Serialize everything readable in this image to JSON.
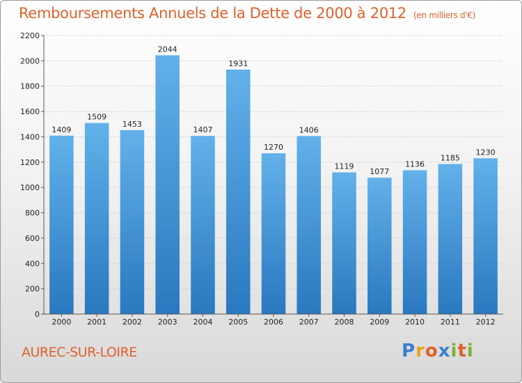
{
  "title": "Remboursements Annuels de la Dette de 2000 à 2012",
  "subtitle": "(en milliers d'€)",
  "place": "AUREC-SUR-LOIRE",
  "logo": {
    "letters": [
      "P",
      "r",
      "o",
      "x",
      "i",
      "t",
      "i"
    ],
    "colors": [
      "#3a7fd0",
      "#e8a21a",
      "#e0602a",
      "#3a7fd0",
      "#7ab534",
      "#e0602a",
      "#7ab534"
    ]
  },
  "colors": {
    "bar_top": "#62b1ea",
    "bar_bottom": "#2a78bf",
    "title": "#e0602a"
  },
  "chart_data": {
    "type": "bar",
    "categories": [
      "2000",
      "2001",
      "2002",
      "2003",
      "2004",
      "2005",
      "2006",
      "2007",
      "2008",
      "2009",
      "2010",
      "2011",
      "2012"
    ],
    "values": [
      1409,
      1509,
      1453,
      2044,
      1407,
      1931,
      1270,
      1406,
      1119,
      1077,
      1136,
      1185,
      1230
    ],
    "title": "Remboursements Annuels de la Dette de 2000 à 2012",
    "ylim": [
      0,
      2200
    ],
    "yticks": [
      0,
      200,
      400,
      600,
      800,
      1000,
      1200,
      1400,
      1600,
      1800,
      2000,
      2200
    ],
    "grid": true,
    "legend": "none"
  }
}
